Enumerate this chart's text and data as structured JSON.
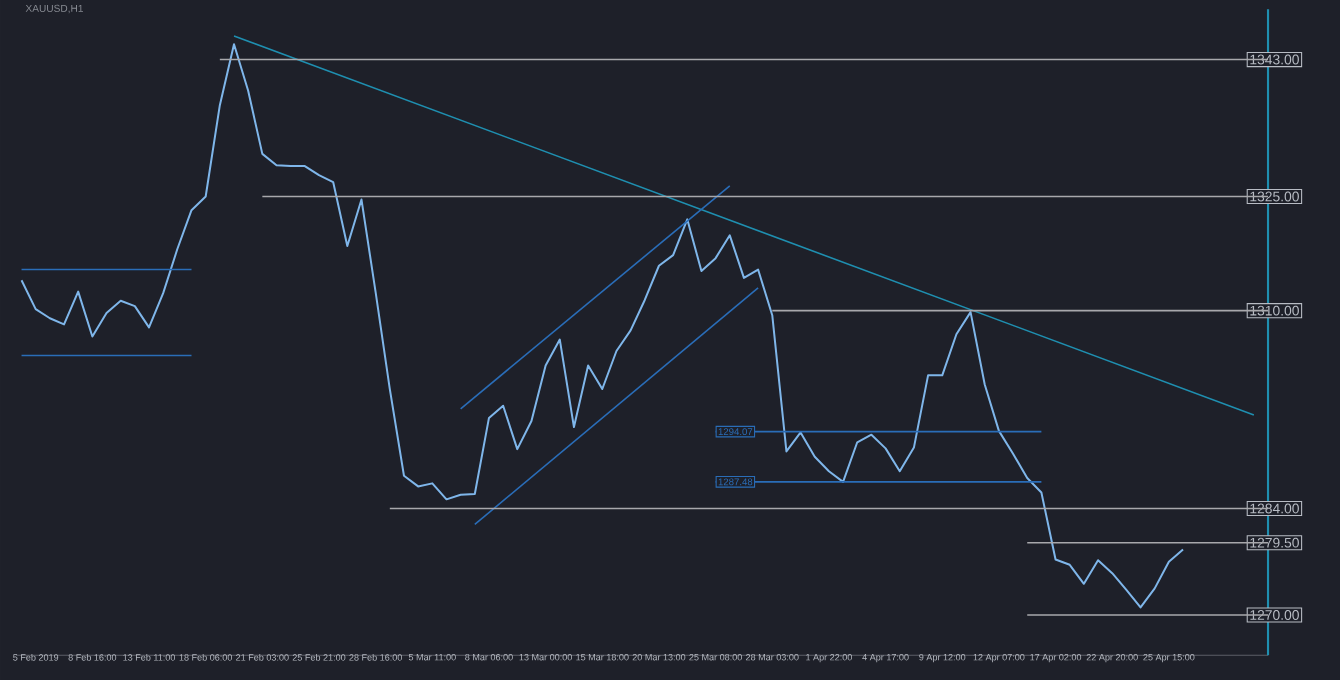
{
  "chart_data": {
    "type": "line",
    "title": "XAUUSD,H1",
    "categories": [
      null,
      "5 Feb 2019",
      null,
      null,
      null,
      "8 Feb 16:00",
      null,
      null,
      null,
      "13 Feb 11:00",
      null,
      null,
      null,
      "18 Feb 06:00",
      null,
      null,
      null,
      "21 Feb 03:00",
      null,
      null,
      null,
      "25 Feb 21:00",
      null,
      null,
      null,
      "28 Feb 16:00",
      null,
      null,
      null,
      "5 Mar 11:00",
      null,
      null,
      null,
      "8 Mar 06:00",
      null,
      null,
      null,
      "13 Mar 00:00",
      null,
      null,
      null,
      "15 Mar 18:00",
      null,
      null,
      null,
      "20 Mar 13:00",
      null,
      null,
      null,
      "25 Mar 08:00",
      null,
      null,
      null,
      "28 Mar 03:00",
      null,
      null,
      null,
      "1 Apr 22:00",
      null,
      null,
      null,
      "4 Apr 17:00",
      null,
      null,
      null,
      "9 Apr 12:00",
      null,
      null,
      null,
      "12 Apr 07:00",
      null,
      null,
      null,
      "17 Apr 02:00",
      null,
      null,
      null,
      "22 Apr 20:00",
      null,
      null,
      null,
      "25 Apr 15:00",
      null,
      null,
      null,
      null,
      null,
      null,
      null
    ],
    "ylim": [
      1264.7,
      1349.6
    ],
    "yticks": [
      {
        "value": 1270,
        "label": "1270.00"
      },
      {
        "value": 1279.5,
        "label": "1279.50"
      },
      {
        "value": 1284,
        "label": "1284.00"
      },
      {
        "value": 1310,
        "label": "1310.00"
      },
      {
        "value": 1325,
        "label": "1325.00"
      },
      {
        "value": 1343,
        "label": "1343.00"
      }
    ],
    "series": [
      {
        "color": "#7fb6ea",
        "values": [
          1314.0,
          1310.2,
          1309.0,
          1308.2,
          1312.5,
          1306.6,
          1309.7,
          1311.3,
          1310.6,
          1307.8,
          1312.3,
          1318.1,
          1323.2,
          1325.0,
          1337.0,
          1345.0,
          1338.9,
          1330.6,
          1329.1,
          1329.0,
          1329.0,
          1327.8,
          1326.9,
          1318.5,
          1324.6,
          1312.4,
          1299.7,
          1288.3,
          1286.9,
          1287.3,
          1285.2,
          1285.8,
          1285.9,
          1295.9,
          1297.5,
          1291.8,
          1295.5,
          1302.8,
          1306.2,
          1294.7,
          1302.8,
          1299.7,
          1304.7,
          1307.4,
          1311.4,
          1315.9,
          1317.3,
          1322.0,
          1315.2,
          1316.9,
          1319.9,
          1314.3,
          1315.4,
          1309.4,
          1291.5,
          1294.0,
          1290.8,
          1288.9,
          1287.5,
          1292.7,
          1293.7,
          1291.9,
          1288.9,
          1292.0,
          1301.5,
          1301.5,
          1306.9,
          1309.8,
          1300.3,
          1294.2,
          1291.2,
          1288.0,
          1286.1,
          1277.3,
          1276.6,
          1274.1,
          1277.2,
          1275.5,
          1273.3,
          1271.0,
          1273.5,
          1277.0,
          1278.6,
          null,
          null,
          null,
          null,
          null,
          null
        ]
      },
      {
        "color": "#1f8fb0",
        "values": [
          null,
          null,
          null,
          null,
          null,
          null,
          null,
          null,
          null,
          null,
          null,
          null,
          null,
          null,
          null,
          1346.1,
          null,
          null,
          null,
          null,
          null,
          null,
          null,
          null,
          null,
          null,
          null,
          null,
          null,
          null,
          null,
          null,
          null,
          null,
          null,
          null,
          null,
          null,
          null,
          null,
          null,
          null,
          null,
          null,
          null,
          null,
          null,
          null,
          null,
          null,
          null,
          null,
          null,
          null,
          null,
          null,
          null,
          null,
          null,
          null,
          null,
          null,
          null,
          null,
          null,
          null,
          null,
          null,
          null,
          null,
          null,
          null,
          null,
          null,
          null,
          null,
          null,
          null,
          null,
          null,
          null,
          null,
          null,
          null,
          null,
          null,
          null,
          1296.3,
          null
        ]
      },
      {
        "color": "#2a6db8",
        "values": [
          null,
          null,
          null,
          null,
          null,
          null,
          null,
          null,
          null,
          null,
          null,
          null,
          null,
          null,
          null,
          null,
          null,
          null,
          null,
          null,
          null,
          null,
          null,
          null,
          null,
          null,
          null,
          null,
          null,
          null,
          null,
          1297.1,
          null,
          null,
          null,
          null,
          null,
          null,
          null,
          null,
          null,
          null,
          null,
          null,
          null,
          null,
          null,
          null,
          null,
          null,
          1326.4,
          null,
          null,
          null,
          null,
          null,
          null,
          null,
          null,
          null,
          null,
          null,
          null,
          null,
          null,
          null,
          null,
          null,
          null,
          null,
          null,
          null,
          null,
          null,
          null,
          null,
          null,
          null,
          null,
          null,
          null,
          null,
          null,
          null,
          null,
          null,
          null,
          null,
          null
        ]
      },
      {
        "color": "#2a6db8",
        "values": [
          null,
          null,
          null,
          null,
          null,
          null,
          null,
          null,
          null,
          null,
          null,
          null,
          null,
          null,
          null,
          null,
          null,
          null,
          null,
          null,
          null,
          null,
          null,
          null,
          null,
          null,
          null,
          null,
          null,
          null,
          null,
          null,
          1281.9,
          null,
          null,
          null,
          null,
          null,
          null,
          null,
          null,
          null,
          null,
          null,
          null,
          null,
          null,
          null,
          null,
          null,
          null,
          null,
          1313.0,
          null,
          null,
          null,
          null,
          null,
          null,
          null,
          null,
          null,
          null,
          null,
          null,
          null,
          null,
          null,
          null,
          null,
          null,
          null,
          null,
          null,
          null,
          null,
          null,
          null,
          null,
          null,
          null,
          null,
          null,
          null,
          null,
          null,
          null,
          null,
          null
        ]
      },
      {
        "color": "#2a6db8",
        "values": [
          1315.4,
          null,
          null,
          null,
          null,
          null,
          null,
          null,
          null,
          null,
          null,
          null,
          1315.4,
          null,
          null,
          null,
          null,
          null,
          null,
          null,
          null,
          null,
          null,
          null,
          null,
          null,
          null,
          null,
          null,
          null,
          null,
          null,
          null,
          null,
          null,
          null,
          null,
          null,
          null,
          null,
          null,
          null,
          null,
          null,
          null,
          null,
          null,
          null,
          null,
          null,
          null,
          null,
          null,
          null,
          null,
          null,
          null,
          null,
          null,
          null,
          null,
          null,
          null,
          null,
          null,
          null,
          null,
          null,
          null,
          null,
          null,
          null,
          null,
          null,
          null,
          null,
          null,
          null,
          null,
          null,
          null,
          null,
          null,
          null,
          null,
          null,
          null,
          null,
          null
        ]
      },
      {
        "color": "#2a6db8",
        "values": [
          1304.1,
          null,
          null,
          null,
          null,
          null,
          null,
          null,
          null,
          null,
          null,
          null,
          1304.1,
          null,
          null,
          null,
          null,
          null,
          null,
          null,
          null,
          null,
          null,
          null,
          null,
          null,
          null,
          null,
          null,
          null,
          null,
          null,
          null,
          null,
          null,
          null,
          null,
          null,
          null,
          null,
          null,
          null,
          null,
          null,
          null,
          null,
          null,
          null,
          null,
          null,
          null,
          null,
          null,
          null,
          null,
          null,
          null,
          null,
          null,
          null,
          null,
          null,
          null,
          null,
          null,
          null,
          null,
          null,
          null,
          null,
          null,
          null,
          null,
          null,
          null,
          null,
          null,
          null,
          null,
          null,
          null,
          null,
          null,
          null,
          null,
          null,
          null,
          null,
          null
        ]
      },
      {
        "name": "1294.07",
        "color": "#2a6db8",
        "values": [
          null,
          null,
          null,
          null,
          null,
          null,
          null,
          null,
          null,
          null,
          null,
          null,
          null,
          null,
          null,
          null,
          null,
          null,
          null,
          null,
          null,
          null,
          null,
          null,
          null,
          null,
          null,
          null,
          null,
          null,
          null,
          null,
          null,
          null,
          null,
          null,
          null,
          null,
          null,
          null,
          null,
          null,
          null,
          null,
          null,
          null,
          null,
          null,
          null,
          1294.1,
          null,
          null,
          null,
          null,
          null,
          null,
          null,
          null,
          null,
          null,
          null,
          null,
          null,
          null,
          null,
          null,
          null,
          null,
          null,
          null,
          null,
          null,
          1294.1,
          null,
          null,
          null,
          null,
          null,
          null,
          null,
          null,
          null,
          null,
          null,
          null,
          null,
          null,
          null,
          null
        ]
      },
      {
        "name": "1287.48",
        "color": "#2a6db8",
        "values": [
          null,
          null,
          null,
          null,
          null,
          null,
          null,
          null,
          null,
          null,
          null,
          null,
          null,
          null,
          null,
          null,
          null,
          null,
          null,
          null,
          null,
          null,
          null,
          null,
          null,
          null,
          null,
          null,
          null,
          null,
          null,
          null,
          null,
          null,
          null,
          null,
          null,
          null,
          null,
          null,
          null,
          null,
          null,
          null,
          null,
          null,
          null,
          null,
          null,
          1287.5,
          null,
          null,
          null,
          null,
          null,
          null,
          null,
          null,
          null,
          null,
          null,
          null,
          null,
          null,
          null,
          null,
          null,
          null,
          null,
          null,
          null,
          null,
          1287.5,
          null,
          null,
          null,
          null,
          null,
          null,
          null,
          null,
          null,
          null,
          null,
          null,
          null,
          null,
          null,
          null
        ]
      },
      {
        "color": "#a8a8ac",
        "values": [
          null,
          null,
          null,
          null,
          null,
          null,
          null,
          null,
          null,
          null,
          null,
          null,
          null,
          null,
          1343,
          null,
          null,
          null,
          null,
          null,
          null,
          null,
          null,
          null,
          null,
          null,
          null,
          null,
          null,
          null,
          null,
          null,
          null,
          null,
          null,
          null,
          null,
          null,
          null,
          null,
          null,
          null,
          null,
          null,
          null,
          null,
          null,
          null,
          null,
          null,
          null,
          null,
          null,
          null,
          null,
          null,
          null,
          null,
          null,
          null,
          null,
          null,
          null,
          null,
          null,
          null,
          null,
          null,
          null,
          null,
          null,
          null,
          null,
          null,
          null,
          null,
          null,
          null,
          null,
          null,
          null,
          null,
          null,
          null,
          null,
          null,
          null,
          null,
          1343
        ]
      },
      {
        "color": "#a8a8ac",
        "values": [
          null,
          null,
          null,
          null,
          null,
          null,
          null,
          null,
          null,
          null,
          null,
          null,
          null,
          null,
          null,
          null,
          null,
          1325,
          null,
          null,
          null,
          null,
          null,
          null,
          null,
          null,
          null,
          null,
          null,
          null,
          null,
          null,
          null,
          null,
          null,
          null,
          null,
          null,
          null,
          null,
          null,
          null,
          null,
          null,
          null,
          null,
          null,
          null,
          null,
          null,
          null,
          null,
          null,
          null,
          null,
          null,
          null,
          null,
          null,
          null,
          null,
          null,
          null,
          null,
          null,
          null,
          null,
          null,
          null,
          null,
          null,
          null,
          null,
          null,
          null,
          null,
          null,
          null,
          null,
          null,
          null,
          null,
          null,
          null,
          null,
          null,
          null,
          null,
          1325
        ]
      },
      {
        "color": "#a8a8ac",
        "values": [
          null,
          null,
          null,
          null,
          null,
          null,
          null,
          null,
          null,
          null,
          null,
          null,
          null,
          null,
          null,
          null,
          null,
          null,
          null,
          null,
          null,
          null,
          null,
          null,
          null,
          null,
          null,
          null,
          null,
          null,
          null,
          null,
          null,
          null,
          null,
          null,
          null,
          null,
          null,
          null,
          null,
          null,
          null,
          null,
          null,
          null,
          null,
          null,
          null,
          null,
          null,
          null,
          null,
          1310,
          null,
          null,
          null,
          null,
          null,
          null,
          null,
          null,
          null,
          null,
          null,
          null,
          null,
          null,
          null,
          null,
          null,
          null,
          null,
          null,
          null,
          null,
          null,
          null,
          null,
          null,
          null,
          null,
          null,
          null,
          null,
          null,
          null,
          null,
          1310
        ]
      },
      {
        "color": "#a8a8ac",
        "values": [
          null,
          null,
          null,
          null,
          null,
          null,
          null,
          null,
          null,
          null,
          null,
          null,
          null,
          null,
          null,
          null,
          null,
          null,
          null,
          null,
          null,
          null,
          null,
          null,
          null,
          null,
          1284,
          null,
          null,
          null,
          null,
          null,
          null,
          null,
          null,
          null,
          null,
          null,
          null,
          null,
          null,
          null,
          null,
          null,
          null,
          null,
          null,
          null,
          null,
          null,
          null,
          null,
          null,
          null,
          null,
          null,
          null,
          null,
          null,
          null,
          null,
          null,
          null,
          null,
          null,
          null,
          null,
          null,
          null,
          null,
          null,
          null,
          null,
          null,
          null,
          null,
          null,
          null,
          null,
          null,
          null,
          null,
          null,
          null,
          null,
          null,
          null,
          null,
          1284
        ]
      },
      {
        "color": "#a8a8ac",
        "values": [
          null,
          null,
          null,
          null,
          null,
          null,
          null,
          null,
          null,
          null,
          null,
          null,
          null,
          null,
          null,
          null,
          null,
          null,
          null,
          null,
          null,
          null,
          null,
          null,
          null,
          null,
          null,
          null,
          null,
          null,
          null,
          null,
          null,
          null,
          null,
          null,
          null,
          null,
          null,
          null,
          null,
          null,
          null,
          null,
          null,
          null,
          null,
          null,
          null,
          null,
          null,
          null,
          null,
          null,
          null,
          null,
          null,
          null,
          null,
          null,
          null,
          null,
          null,
          null,
          null,
          null,
          null,
          null,
          null,
          null,
          null,
          1279.5,
          null,
          null,
          null,
          null,
          null,
          null,
          null,
          null,
          null,
          null,
          null,
          null,
          null,
          null,
          null,
          null,
          1279.5
        ]
      },
      {
        "color": "#a8a8ac",
        "values": [
          null,
          null,
          null,
          null,
          null,
          null,
          null,
          null,
          null,
          null,
          null,
          null,
          null,
          null,
          null,
          null,
          null,
          null,
          null,
          null,
          null,
          null,
          null,
          null,
          null,
          null,
          null,
          null,
          null,
          null,
          null,
          null,
          null,
          null,
          null,
          null,
          null,
          null,
          null,
          null,
          null,
          null,
          null,
          null,
          null,
          null,
          null,
          null,
          null,
          null,
          null,
          null,
          null,
          null,
          null,
          null,
          null,
          null,
          null,
          null,
          null,
          null,
          null,
          null,
          null,
          null,
          null,
          null,
          null,
          null,
          null,
          1270,
          null,
          null,
          null,
          null,
          null,
          null,
          null,
          null,
          null,
          null,
          null,
          null,
          null,
          null,
          null,
          null,
          1270
        ]
      }
    ]
  }
}
